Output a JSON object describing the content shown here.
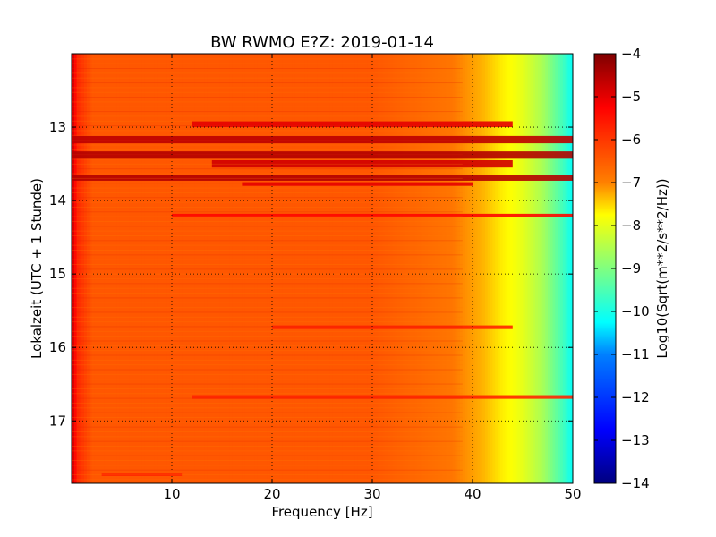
{
  "chart_data": {
    "type": "heatmap",
    "title": "BW RWMO E?Z: 2019-01-14",
    "xlabel": "Frequency [Hz]",
    "ylabel": "Lokalzeit (UTC + 1 Stunde)",
    "colorbar_label": "Log10(Sqrt(m**2/s**2/Hz))",
    "xlim": [
      0,
      50
    ],
    "ylim": [
      17.85,
      12.0
    ],
    "x_ticks": [
      10,
      20,
      30,
      40,
      50
    ],
    "y_ticks": [
      13,
      14,
      15,
      16,
      17
    ],
    "colorbar_range": [
      -14,
      -4
    ],
    "colorbar_ticks": [
      -4,
      -5,
      -6,
      -7,
      -8,
      -9,
      -10,
      -11,
      -12,
      -13,
      -14
    ],
    "colormap": "jet",
    "grid": true,
    "grid_style": "dotted",
    "frequency_profile": {
      "frequency_hz": [
        0,
        0.5,
        2,
        10,
        30,
        38,
        41,
        43,
        45,
        47,
        49,
        50
      ],
      "log10_amplitude": [
        -4.5,
        -5.6,
        -6.1,
        -6.1,
        -6.1,
        -6.4,
        -7.0,
        -7.6,
        -8.0,
        -8.6,
        -9.6,
        -10.2
      ]
    },
    "strong_bands": [
      {
        "time_start": 12.92,
        "time_end": 13.0,
        "freq_start": 12,
        "freq_end": 44,
        "log10_amplitude": -5.0
      },
      {
        "time_start": 13.12,
        "time_end": 13.22,
        "freq_start": 0,
        "freq_end": 50,
        "log10_amplitude": -4.6
      },
      {
        "time_start": 13.33,
        "time_end": 13.43,
        "freq_start": 0,
        "freq_end": 50,
        "log10_amplitude": -4.5
      },
      {
        "time_start": 13.45,
        "time_end": 13.55,
        "freq_start": 14,
        "freq_end": 44,
        "log10_amplitude": -4.8
      },
      {
        "time_start": 13.65,
        "time_end": 13.73,
        "freq_start": 0,
        "freq_end": 50,
        "log10_amplitude": -4.5
      },
      {
        "time_start": 13.75,
        "time_end": 13.8,
        "freq_start": 17,
        "freq_end": 40,
        "log10_amplitude": -5.0
      },
      {
        "time_start": 14.18,
        "time_end": 14.22,
        "freq_start": 10,
        "freq_end": 50,
        "log10_amplitude": -5.3
      },
      {
        "time_start": 15.7,
        "time_end": 15.75,
        "freq_start": 20,
        "freq_end": 44,
        "log10_amplitude": -5.6
      },
      {
        "time_start": 16.65,
        "time_end": 16.7,
        "freq_start": 12,
        "freq_end": 50,
        "log10_amplitude": -5.6
      },
      {
        "time_start": 17.72,
        "time_end": 17.75,
        "freq_start": 3,
        "freq_end": 11,
        "log10_amplitude": -5.5
      }
    ]
  }
}
